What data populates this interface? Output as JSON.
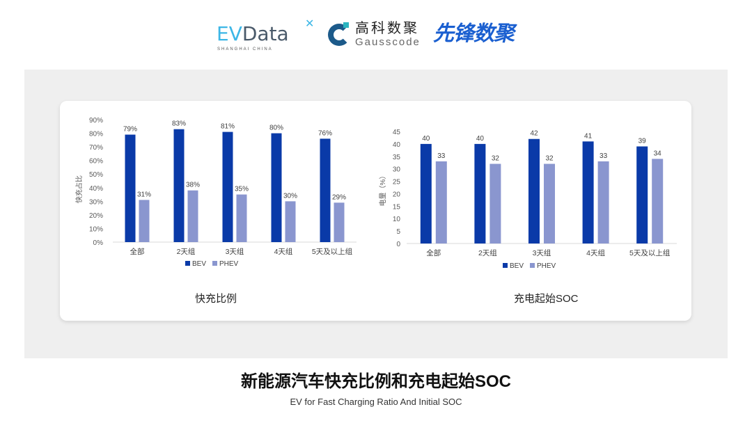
{
  "logos": {
    "evdata": {
      "ev": "EV",
      "data": "Data",
      "sub": "SHANGHAI CHINA"
    },
    "gausscode": {
      "cn": "高科数聚",
      "en": "Gausscode"
    },
    "xianfeng": "先锋数聚"
  },
  "colors": {
    "bev": "#0a3aa8",
    "phev": "#8a96cf",
    "panel": "#efefef"
  },
  "chart_data": [
    {
      "type": "bar",
      "title": "快充比例",
      "ylabel": "快充占比",
      "categories": [
        "全部",
        "2天组",
        "3天组",
        "4天组",
        "5天及以上组"
      ],
      "series": [
        {
          "name": "BEV",
          "values": [
            79,
            83,
            81,
            80,
            76
          ],
          "labels": [
            "79%",
            "83%",
            "81%",
            "80%",
            "76%"
          ]
        },
        {
          "name": "PHEV",
          "values": [
            31,
            38,
            35,
            30,
            29
          ],
          "labels": [
            "31%",
            "38%",
            "35%",
            "30%",
            "29%"
          ]
        }
      ],
      "ylim": [
        0,
        90
      ],
      "yticks": [
        "0%",
        "10%",
        "20%",
        "30%",
        "40%",
        "50%",
        "60%",
        "70%",
        "80%",
        "90%"
      ],
      "legend": "bottom",
      "grid": false
    },
    {
      "type": "bar",
      "title": "充电起始SOC",
      "ylabel": "电量（%）",
      "categories": [
        "全部",
        "2天组",
        "3天组",
        "4天组",
        "5天及以上组"
      ],
      "series": [
        {
          "name": "BEV",
          "values": [
            40,
            40,
            42,
            41,
            39
          ],
          "labels": [
            "40",
            "40",
            "42",
            "41",
            "39"
          ]
        },
        {
          "name": "PHEV",
          "values": [
            33,
            32,
            32,
            33,
            34
          ],
          "labels": [
            "33",
            "32",
            "32",
            "33",
            "34"
          ]
        }
      ],
      "ylim": [
        0,
        45
      ],
      "yticks": [
        "0",
        "5",
        "10",
        "15",
        "20",
        "25",
        "30",
        "35",
        "40",
        "45"
      ],
      "legend": "bottom",
      "grid": false
    }
  ],
  "footer": {
    "title": "新能源汽车快充比例和充电起始SOC",
    "subtitle": "EV for Fast Charging Ratio And Initial SOC"
  }
}
